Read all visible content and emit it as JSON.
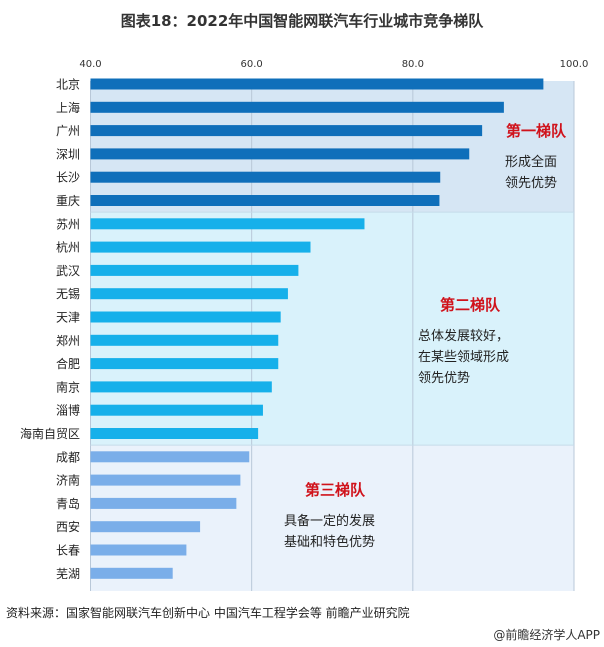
{
  "chart_data": {
    "type": "bar",
    "orientation": "horizontal",
    "title": "图表18：2022年中国智能网联汽车行业城市竞争梯队",
    "xlim": [
      40,
      100
    ],
    "xticks": [
      "40.0",
      "60.0",
      "80.0",
      "100.0"
    ],
    "xtick_values": [
      40,
      60,
      80,
      100
    ],
    "grid": true,
    "categories": [
      "北京",
      "上海",
      "广州",
      "深圳",
      "长沙",
      "重庆",
      "苏州",
      "杭州",
      "武汉",
      "无锡",
      "天津",
      "郑州",
      "合肥",
      "南京",
      "淄博",
      "海南自贸区",
      "成都",
      "济南",
      "青岛",
      "西安",
      "长春",
      "芜湖"
    ],
    "values": [
      96.2,
      91.3,
      88.6,
      87.0,
      83.4,
      83.3,
      74.0,
      67.3,
      65.8,
      64.5,
      63.6,
      63.3,
      63.3,
      62.5,
      61.4,
      60.8,
      59.7,
      58.6,
      58.1,
      53.6,
      51.9,
      50.2
    ],
    "tiers": [
      {
        "name": "第一梯队",
        "desc": [
          "形成全面",
          "领先优势"
        ],
        "count": 6,
        "bar_color": "#0f6fba",
        "bg_color": "#d6e6f4"
      },
      {
        "name": "第二梯队",
        "desc": [
          "总体发展较好，",
          "在某些领域形成",
          "领先优势"
        ],
        "count": 10,
        "bar_color": "#16b0ea",
        "bg_color": "#d9f2fb"
      },
      {
        "name": "第三梯队",
        "desc": [
          "具备一定的发展",
          "基础和特色优势"
        ],
        "count": 6,
        "bar_color": "#7aaee9",
        "bg_color": "#eaf2fb"
      }
    ],
    "tier_label_color": "#d0121b"
  },
  "footer": {
    "source": "资料来源：国家智能网联汽车创新中心 中国汽车工程学会等 前瞻产业研究院",
    "credit": "@前瞻经济学人APP"
  }
}
